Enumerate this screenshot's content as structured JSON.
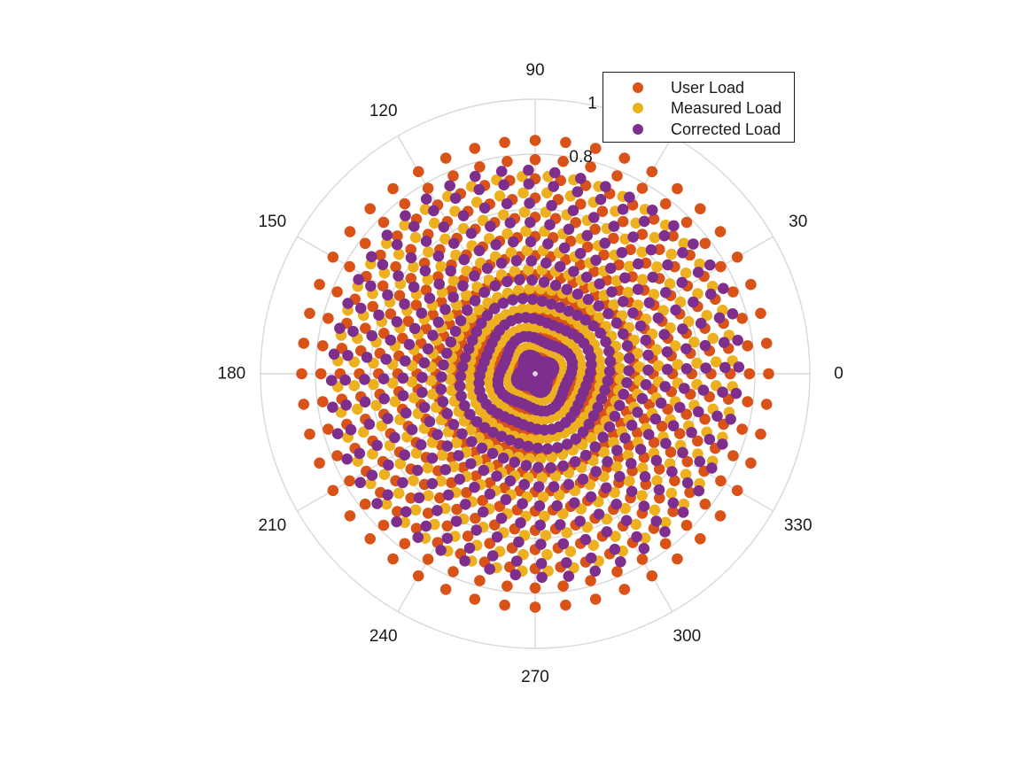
{
  "chart_data": {
    "type": "scatter",
    "coordinate_system": "polar",
    "theta_unit": "degrees",
    "theta_ticks": [
      0,
      30,
      60,
      90,
      120,
      150,
      180,
      210,
      240,
      270,
      300,
      330
    ],
    "theta_tick_labels": [
      "0",
      "30",
      "",
      "90",
      "120",
      "150",
      "180",
      "210",
      "240",
      "270",
      "300",
      "330"
    ],
    "r_ticks": [
      0,
      0.2,
      0.4,
      0.6,
      0.8,
      1
    ],
    "r_tick_labels": [
      "",
      "",
      "",
      "",
      "0.8",
      "1"
    ],
    "rlim": [
      0,
      1
    ],
    "grid": true,
    "legend_position": "top-right",
    "theta_spokes_count": 48,
    "series": [
      {
        "name": "User Load",
        "color": "#D95319",
        "rays": [
          0,
          7.5,
          15,
          22.5,
          30,
          37.5,
          45,
          52.5,
          60,
          67.5,
          75,
          82.5,
          90,
          97.5,
          105,
          112.5,
          120,
          127.5,
          135,
          142.5,
          150,
          157.5,
          165,
          172.5,
          180,
          187.5,
          195,
          202.5,
          210,
          217.5,
          225,
          232.5,
          240,
          247.5,
          255,
          262.5,
          270,
          277.5,
          285,
          292.5,
          300,
          307.5,
          315,
          322.5,
          330,
          337.5,
          345,
          352.5
        ],
        "r_values": [
          0.08,
          0.15,
          0.22,
          0.29,
          0.36,
          0.43,
          0.5,
          0.57,
          0.64,
          0.71,
          0.78,
          0.85
        ]
      },
      {
        "name": "Measured Load",
        "color": "#EDB120",
        "rays": [
          3.75,
          11.25,
          18.75,
          26.25,
          33.75,
          41.25,
          48.75,
          56.25,
          63.75,
          71.25,
          78.75,
          86.25,
          93.75,
          101.25,
          108.75,
          116.25,
          123.75,
          131.25,
          138.75,
          146.25,
          153.75,
          161.25,
          168.75,
          176.25,
          183.75,
          191.25,
          198.75,
          206.25,
          213.75,
          221.25,
          228.75,
          236.25,
          243.75,
          251.25,
          258.75,
          266.25,
          273.75,
          281.25,
          288.75,
          296.25,
          303.75,
          311.25,
          318.75,
          326.25,
          333.75,
          341.25,
          348.75,
          356.25
        ],
        "r_values": [
          0.1,
          0.17,
          0.24,
          0.31,
          0.38,
          0.45,
          0.52,
          0.59,
          0.66,
          0.72
        ]
      },
      {
        "name": "Corrected Load",
        "color": "#7E2F8E",
        "rays": [
          1.9,
          9.4,
          16.9,
          24.4,
          31.9,
          39.4,
          46.9,
          54.4,
          61.9,
          69.4,
          76.9,
          84.4,
          91.9,
          99.4,
          106.9,
          114.4,
          121.9,
          129.4,
          136.9,
          144.4,
          151.9,
          159.4,
          166.9,
          174.4,
          181.9,
          189.4,
          196.9,
          204.4,
          211.9,
          219.4,
          226.9,
          234.4,
          241.9,
          249.4,
          256.9,
          264.4,
          271.9,
          279.4,
          286.9,
          294.4,
          301.9,
          309.4,
          316.9,
          324.4,
          331.9,
          339.4,
          346.9,
          354.4
        ],
        "r_values": [
          0.06,
          0.13,
          0.2,
          0.27,
          0.34,
          0.41,
          0.48,
          0.55,
          0.62,
          0.69,
          0.74
        ]
      }
    ]
  }
}
